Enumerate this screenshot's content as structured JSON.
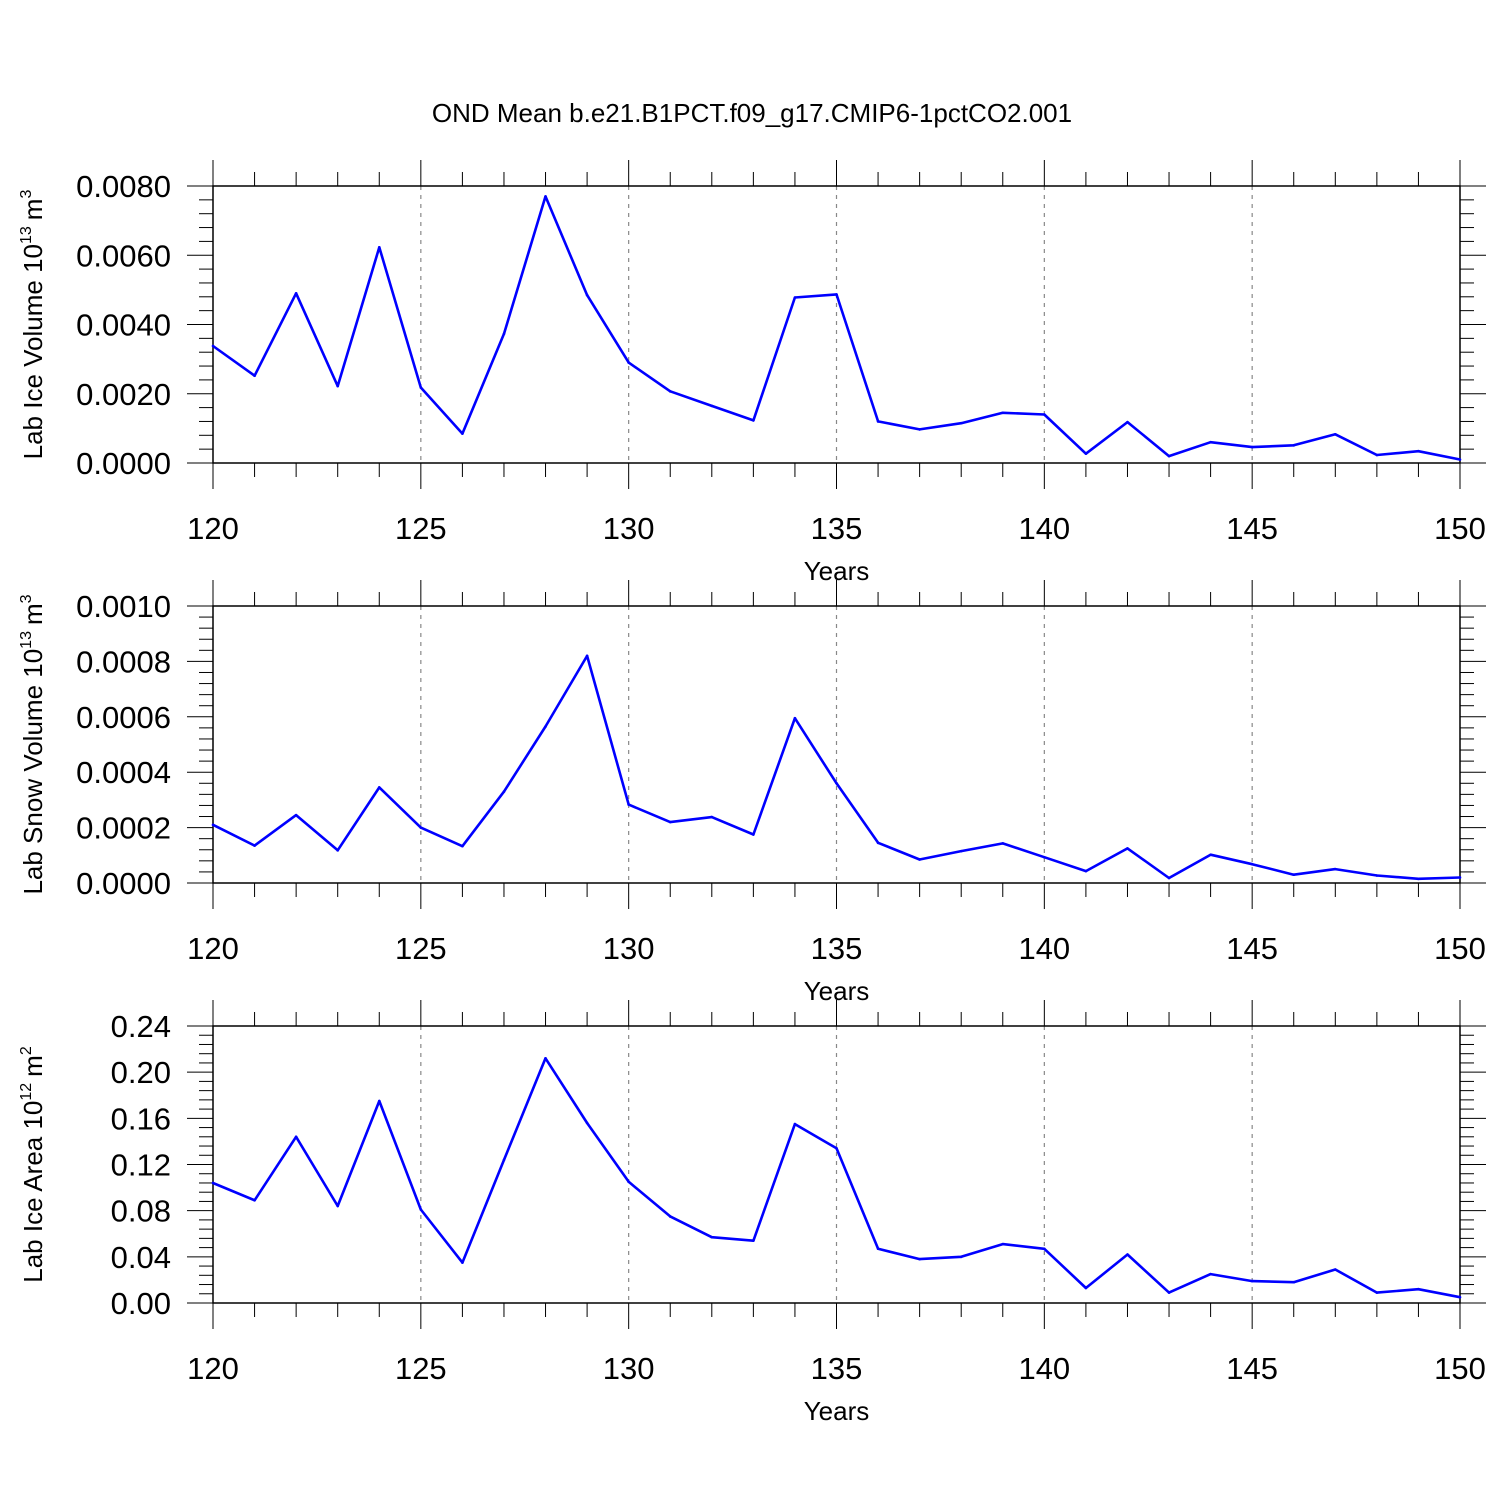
{
  "title": "OND Mean b.e21.B1PCT.f09_g17.CMIP6-1pctCO2.001",
  "colors": {
    "line": "#0000ff",
    "axis": "#000000",
    "grid": "#888888"
  },
  "chart_data": [
    {
      "type": "line",
      "ylabel": {
        "text": "Lab Ice Volume 10",
        "exp": "13",
        "unit": "m",
        "unit_exp": "3"
      },
      "xlabel": "Years",
      "xlim": [
        120,
        150
      ],
      "ylim": [
        0,
        0.008
      ],
      "x_ticks": [
        "120",
        "125",
        "130",
        "135",
        "140",
        "145",
        "150"
      ],
      "y_ticks": [
        "0.0000",
        "0.0020",
        "0.0040",
        "0.0060",
        "0.0080"
      ],
      "grid": "dashed vertical at major x ticks",
      "x": [
        120,
        121,
        122,
        123,
        124,
        125,
        126,
        127,
        128,
        129,
        130,
        131,
        132,
        133,
        134,
        135,
        136,
        137,
        138,
        139,
        140,
        141,
        142,
        143,
        144,
        145,
        146,
        147,
        148,
        149,
        150
      ],
      "values": [
        0.00338,
        0.00252,
        0.0049,
        0.00222,
        0.00623,
        0.00218,
        0.00085,
        0.00373,
        0.0077,
        0.00485,
        0.0029,
        0.00207,
        0.00165,
        0.00123,
        0.00478,
        0.00487,
        0.0012,
        0.00097,
        0.00115,
        0.00145,
        0.0014,
        0.00027,
        0.00118,
        0.0002,
        0.0006,
        0.00046,
        0.00051,
        0.00083,
        0.00023,
        0.00034,
        0.0001
      ]
    },
    {
      "type": "line",
      "ylabel": {
        "text": "Lab Snow Volume 10",
        "exp": "13",
        "unit": "m",
        "unit_exp": "3"
      },
      "xlabel": "Years",
      "xlim": [
        120,
        150
      ],
      "ylim": [
        0,
        0.001
      ],
      "x_ticks": [
        "120",
        "125",
        "130",
        "135",
        "140",
        "145",
        "150"
      ],
      "y_ticks": [
        "0.0000",
        "0.0002",
        "0.0004",
        "0.0006",
        "0.0008",
        "0.0010"
      ],
      "grid": "dashed vertical at major x ticks",
      "x": [
        120,
        121,
        122,
        123,
        124,
        125,
        126,
        127,
        128,
        129,
        130,
        131,
        132,
        133,
        134,
        135,
        136,
        137,
        138,
        139,
        140,
        141,
        142,
        143,
        144,
        145,
        146,
        147,
        148,
        149,
        150
      ],
      "values": [
        0.00021,
        0.000135,
        0.000245,
        0.000118,
        0.000345,
        0.0002,
        0.000133,
        0.00033,
        0.000565,
        0.00082,
        0.000283,
        0.00022,
        0.000238,
        0.000175,
        0.000595,
        0.00036,
        0.000145,
        8.5e-05,
        0.000115,
        0.000143,
        9.3e-05,
        4.3e-05,
        0.000125,
        1.8e-05,
        0.000102,
        6.8e-05,
        3e-05,
        5e-05,
        2.7e-05,
        1.5e-05,
        2e-05
      ]
    },
    {
      "type": "line",
      "ylabel": {
        "text": "Lab Ice Area 10",
        "exp": "12",
        "unit": "m",
        "unit_exp": "2"
      },
      "xlabel": "Years",
      "xlim": [
        120,
        150
      ],
      "ylim": [
        0,
        0.24
      ],
      "x_ticks": [
        "120",
        "125",
        "130",
        "135",
        "140",
        "145",
        "150"
      ],
      "y_ticks": [
        "0.00",
        "0.04",
        "0.08",
        "0.12",
        "0.16",
        "0.20",
        "0.24"
      ],
      "grid": "dashed vertical at major x ticks",
      "x": [
        120,
        121,
        122,
        123,
        124,
        125,
        126,
        127,
        128,
        129,
        130,
        131,
        132,
        133,
        134,
        135,
        136,
        137,
        138,
        139,
        140,
        141,
        142,
        143,
        144,
        145,
        146,
        147,
        148,
        149,
        150
      ],
      "values": [
        0.104,
        0.089,
        0.144,
        0.084,
        0.175,
        0.081,
        0.035,
        0.124,
        0.212,
        0.156,
        0.105,
        0.075,
        0.057,
        0.054,
        0.155,
        0.134,
        0.047,
        0.038,
        0.04,
        0.051,
        0.047,
        0.013,
        0.042,
        0.009,
        0.025,
        0.019,
        0.018,
        0.029,
        0.009,
        0.012,
        0.005
      ]
    }
  ]
}
